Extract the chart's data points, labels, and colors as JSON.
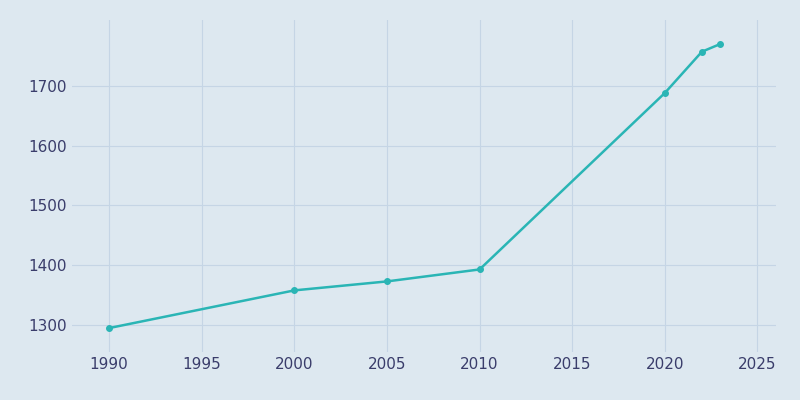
{
  "years": [
    1990,
    2000,
    2005,
    2010,
    2020,
    2022,
    2023
  ],
  "population": [
    1295,
    1358,
    1373,
    1393,
    1688,
    1757,
    1770
  ],
  "line_color": "#2ab5b5",
  "marker_color": "#2ab5b5",
  "background_color": "#dde8f0",
  "plot_background_color": "#dde8f0",
  "grid_color": "#c5d5e5",
  "text_color": "#3a3d6b",
  "xlim": [
    1988,
    2026
  ],
  "ylim": [
    1255,
    1810
  ],
  "xticks": [
    1990,
    1995,
    2000,
    2005,
    2010,
    2015,
    2020,
    2025
  ],
  "yticks": [
    1300,
    1400,
    1500,
    1600,
    1700
  ],
  "linewidth": 1.8,
  "markersize": 4,
  "tick_labelsize": 11
}
